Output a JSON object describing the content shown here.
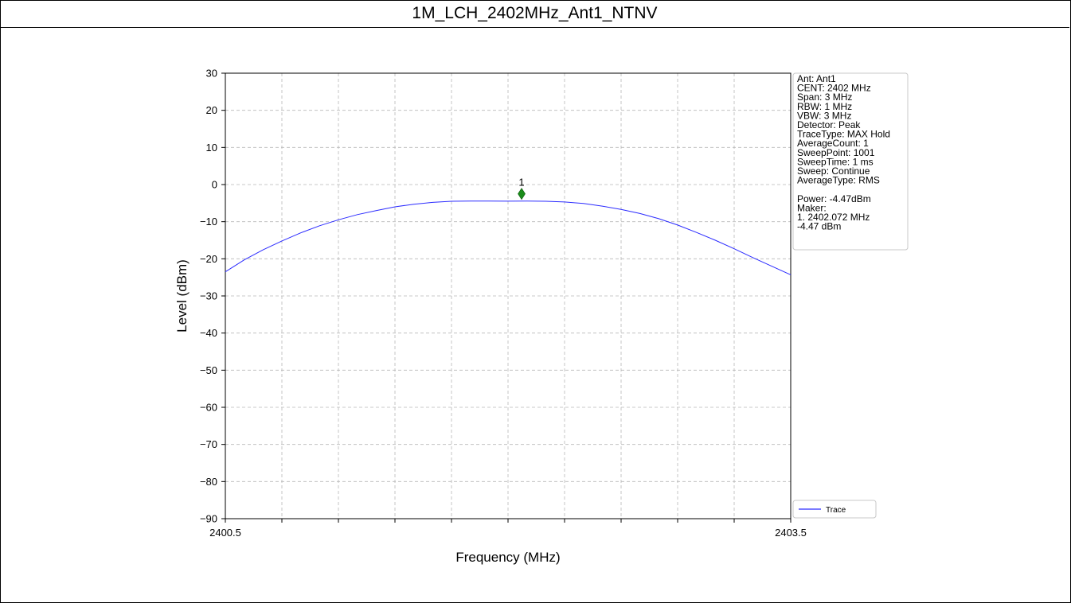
{
  "title": "1M_LCH_2402MHz_Ant1_NTNV",
  "colors": {
    "trace": "#2b2bff",
    "marker": "#1a8c1a",
    "grid": "#b8b8b8"
  },
  "chart_data": {
    "type": "line",
    "xlabel": "Frequency (MHz)",
    "ylabel": "Level (dBm)",
    "xlim": [
      2400.5,
      2403.5
    ],
    "ylim": [
      -90,
      30
    ],
    "x_tick_labels": [
      "2400.5",
      "2403.5"
    ],
    "x_minor_ticks": [
      2400.8,
      2401.1,
      2401.4,
      2401.7,
      2402.0,
      2402.3,
      2402.6,
      2402.9,
      2403.2
    ],
    "y_ticks": [
      30,
      20,
      10,
      0,
      -10,
      -20,
      -30,
      -40,
      -50,
      -60,
      -70,
      -80,
      -90
    ],
    "y_tick_labels": [
      "30",
      "20",
      "10",
      "0",
      "−10",
      "−20",
      "−30",
      "−40",
      "−50",
      "−60",
      "−70",
      "−80",
      "−90"
    ],
    "grid": true,
    "series": [
      {
        "name": "Trace",
        "x": [
          2400.5,
          2400.6,
          2400.7,
          2400.8,
          2400.9,
          2401.0,
          2401.1,
          2401.2,
          2401.3,
          2401.4,
          2401.5,
          2401.6,
          2401.7,
          2401.8,
          2401.9,
          2402.0,
          2402.1,
          2402.2,
          2402.3,
          2402.4,
          2402.5,
          2402.6,
          2402.7,
          2402.8,
          2402.9,
          2403.0,
          2403.1,
          2403.2,
          2403.3,
          2403.4,
          2403.5
        ],
        "y": [
          -23.5,
          -20.3,
          -17.6,
          -15.2,
          -13.0,
          -11.1,
          -9.5,
          -8.1,
          -7.0,
          -6.0,
          -5.3,
          -4.8,
          -4.5,
          -4.45,
          -4.45,
          -4.47,
          -4.45,
          -4.5,
          -4.7,
          -5.1,
          -5.8,
          -6.7,
          -7.8,
          -9.2,
          -10.9,
          -12.9,
          -15.0,
          -17.3,
          -19.7,
          -22.0,
          -24.3
        ]
      }
    ],
    "marker": {
      "label": "1",
      "x": 2402.072,
      "y": -2.5
    },
    "legend": {
      "position": "bottom-right outside",
      "entries": [
        "Trace"
      ]
    }
  },
  "info_box": {
    "lines": [
      "Ant: Ant1",
      "CENT: 2402 MHz",
      "Span: 3 MHz",
      "RBW: 1 MHz",
      "VBW: 3 MHz",
      "Detector: Peak",
      "TraceType: MAX Hold",
      "AverageCount: 1",
      "SweepPoint: 1001",
      "SweepTime: 1 ms",
      "Sweep: Continue",
      "AverageType: RMS",
      "",
      "Power: -4.47dBm",
      "Maker:",
      "1. 2402.072 MHz",
      "    -4.47 dBm"
    ]
  }
}
